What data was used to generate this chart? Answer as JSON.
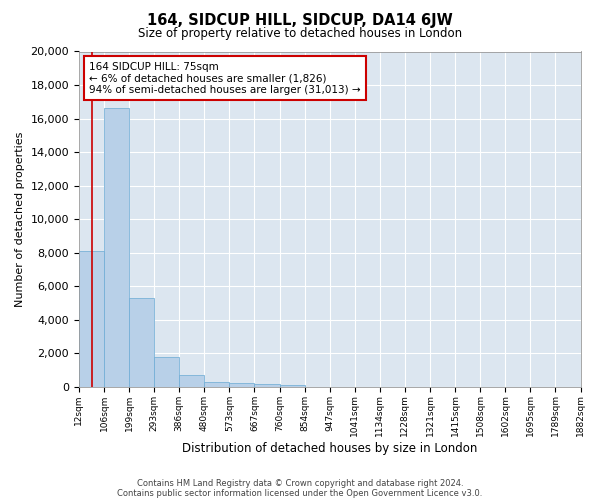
{
  "title": "164, SIDCUP HILL, SIDCUP, DA14 6JW",
  "subtitle": "Size of property relative to detached houses in London",
  "xlabel": "Distribution of detached houses by size in London",
  "ylabel": "Number of detached properties",
  "bar_color": "#b8d0e8",
  "bar_edge_color": "#6aaad4",
  "background_color": "#dce6f0",
  "grid_color": "#ffffff",
  "red_line_color": "#cc0000",
  "footer1": "Contains HM Land Registry data © Crown copyright and database right 2024.",
  "footer2": "Contains public sector information licensed under the Open Government Licence v3.0.",
  "annotation_line1": "164 SIDCUP HILL: 75sqm",
  "annotation_line2": "← 6% of detached houses are smaller (1,826)",
  "annotation_line3": "94% of semi-detached houses are larger (31,013) →",
  "property_bin_index": 0,
  "bin_counts": [
    8100,
    16600,
    5300,
    1750,
    700,
    300,
    200,
    150,
    100,
    0,
    0,
    0,
    0,
    0,
    0,
    0,
    0,
    0,
    0,
    0
  ],
  "ylim": [
    0,
    20000
  ],
  "yticks": [
    0,
    2000,
    4000,
    6000,
    8000,
    10000,
    12000,
    14000,
    16000,
    18000,
    20000
  ],
  "tick_labels": [
    "12sqm",
    "106sqm",
    "199sqm",
    "293sqm",
    "386sqm",
    "480sqm",
    "573sqm",
    "667sqm",
    "760sqm",
    "854sqm",
    "947sqm",
    "1041sqm",
    "1134sqm",
    "1228sqm",
    "1321sqm",
    "1415sqm",
    "1508sqm",
    "1602sqm",
    "1695sqm",
    "1789sqm",
    "1882sqm"
  ]
}
